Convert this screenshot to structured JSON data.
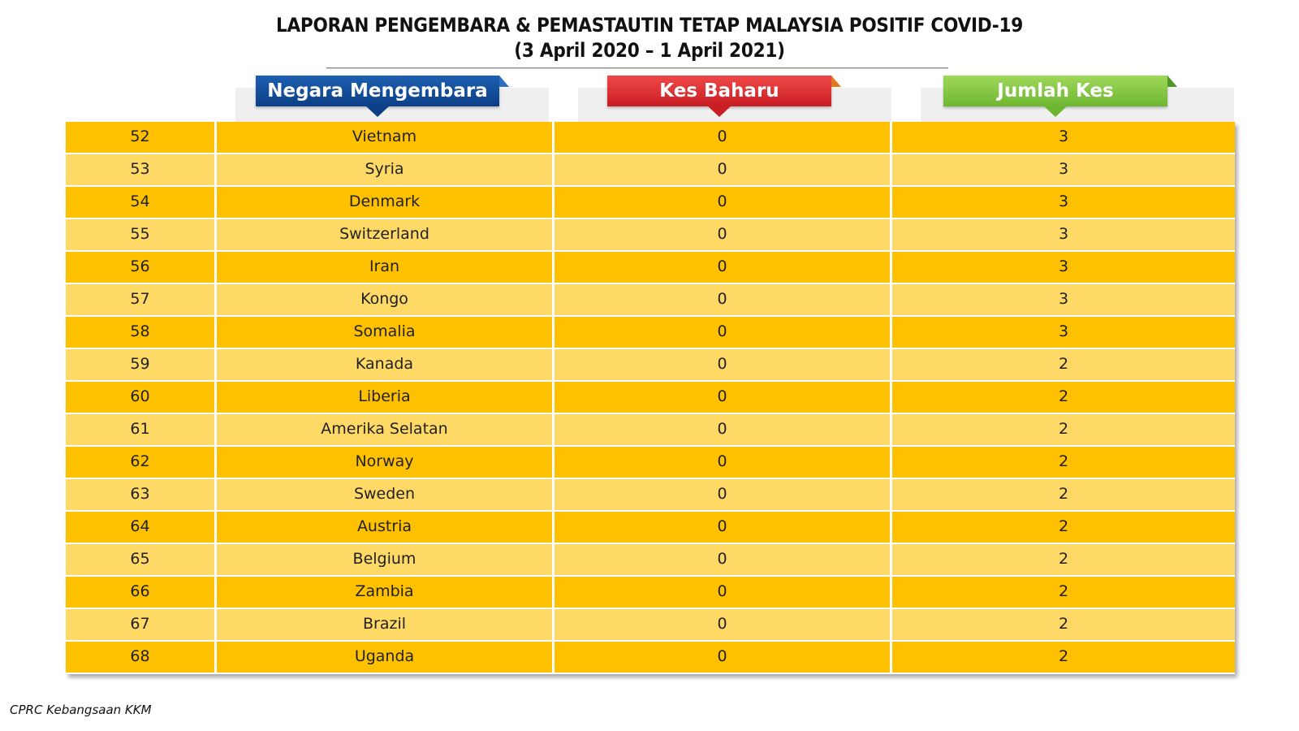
{
  "title": {
    "line1": "LAPORAN PENGEMBARA & PEMASTAUTIN TETAP MALAYSIA POSITIF COVID-19",
    "line2": "(3 April 2020 – 1 April 2021)"
  },
  "headers": {
    "country": "Negara Mengembara",
    "new_cases": "Kes Baharu",
    "total_cases": "Jumlah Kes"
  },
  "colors": {
    "header_country": "#0c3f86",
    "header_new": "#c81e24",
    "header_total": "#6eb632",
    "row_dark": "#ffc000",
    "row_light": "#ffd966"
  },
  "rows": [
    {
      "no": "52",
      "country": "Vietnam",
      "new": "0",
      "total": "3"
    },
    {
      "no": "53",
      "country": "Syria",
      "new": "0",
      "total": "3"
    },
    {
      "no": "54",
      "country": "Denmark",
      "new": "0",
      "total": "3"
    },
    {
      "no": "55",
      "country": "Switzerland",
      "new": "0",
      "total": "3"
    },
    {
      "no": "56",
      "country": "Iran",
      "new": "0",
      "total": "3"
    },
    {
      "no": "57",
      "country": "Kongo",
      "new": "0",
      "total": "3"
    },
    {
      "no": "58",
      "country": "Somalia",
      "new": "0",
      "total": "3"
    },
    {
      "no": "59",
      "country": "Kanada",
      "new": "0",
      "total": "2"
    },
    {
      "no": "60",
      "country": "Liberia",
      "new": "0",
      "total": "2"
    },
    {
      "no": "61",
      "country": "Amerika Selatan",
      "new": "0",
      "total": "2"
    },
    {
      "no": "62",
      "country": "Norway",
      "new": "0",
      "total": "2"
    },
    {
      "no": "63",
      "country": "Sweden",
      "new": "0",
      "total": "2"
    },
    {
      "no": "64",
      "country": "Austria",
      "new": "0",
      "total": "2"
    },
    {
      "no": "65",
      "country": "Belgium",
      "new": "0",
      "total": "2"
    },
    {
      "no": "66",
      "country": "Zambia",
      "new": "0",
      "total": "2"
    },
    {
      "no": "67",
      "country": "Brazil",
      "new": "0",
      "total": "2"
    },
    {
      "no": "68",
      "country": "Uganda",
      "new": "0",
      "total": "2"
    }
  ],
  "footer": "CPRC Kebangsaan KKM"
}
